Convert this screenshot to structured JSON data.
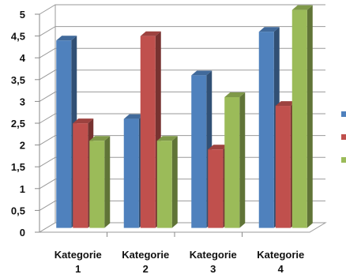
{
  "chart_data": {
    "type": "bar",
    "style": "3d-clustered-column",
    "categories": [
      "Kategorie 1",
      "Kategorie 2",
      "Kategorie 3",
      "Kategorie 4"
    ],
    "category_lines": [
      [
        "Kategorie",
        "1"
      ],
      [
        "Kategorie",
        "2"
      ],
      [
        "Kategorie",
        "3"
      ],
      [
        "Kategorie",
        "4"
      ]
    ],
    "series": [
      {
        "values": [
          4.3,
          2.5,
          3.5,
          4.5
        ],
        "color": "#4f81bd"
      },
      {
        "values": [
          2.4,
          4.4,
          1.8,
          2.8
        ],
        "color": "#c0504d"
      },
      {
        "values": [
          2.0,
          2.0,
          3.0,
          5.0
        ],
        "color": "#9bbb59"
      }
    ],
    "y_ticks": [
      "0",
      "0,5",
      "1",
      "1,5",
      "2",
      "2,5",
      "3",
      "3,5",
      "4",
      "4,5",
      "5"
    ],
    "ylim": [
      0,
      5
    ],
    "grid": true,
    "legend": "right",
    "title": "",
    "xlabel": "",
    "ylabel": ""
  }
}
